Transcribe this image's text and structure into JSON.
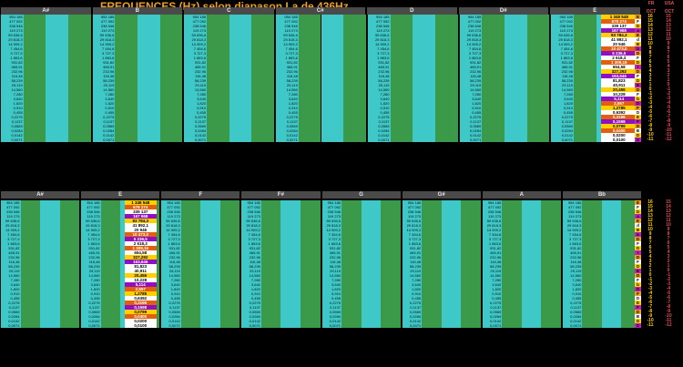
{
  "title": "FREQUENCES  (Hz) selon diapason La de 436Hz",
  "oct_header_fr": [
    "FR",
    "OCT"
  ],
  "oct_header_usa": [
    "USA",
    "OCT"
  ],
  "notes_top": [
    "A#",
    "B",
    "C",
    "C#",
    "D",
    "D#",
    "E"
  ],
  "notes_bottom": [
    "A#",
    "E",
    "F",
    "F#",
    "G",
    "G#",
    "A",
    "Bb"
  ],
  "oct_fr": [
    "16",
    "15",
    "14",
    "13",
    "12",
    "11",
    "10",
    "9",
    "8",
    "7",
    "6",
    "5",
    "4",
    "3",
    "2",
    "1",
    "0",
    "-1",
    "-2",
    "-3",
    "-4",
    "-5",
    "-6",
    "-7",
    "-8",
    "-9",
    "-10",
    "-11"
  ],
  "oct_usa": [
    "15",
    "14",
    "13",
    "12",
    "11",
    "10",
    "9",
    "8",
    "7",
    "6",
    "5",
    "4",
    "3",
    "2",
    "1",
    "0",
    "-1",
    "-2",
    "-3",
    "-4",
    "-5",
    "-6",
    "-7",
    "-8",
    "-9",
    "-10",
    "-11",
    "-12"
  ],
  "tags": [
    "E",
    "F",
    "D",
    "a",
    "E",
    "d",
    "B",
    "b",
    "D",
    "F",
    "D",
    "t",
    "D",
    "F",
    "D",
    "E",
    "D",
    "F",
    "b",
    "D",
    "F",
    "D",
    "E",
    "F",
    "D",
    "B",
    "D",
    "D"
  ],
  "highlight_top": [
    "1 348 548",
    "678 274",
    "339 137",
    "167 968",
    "83 784,3",
    "41 892,1",
    "20 946",
    "10 473,0",
    "5 236,5",
    "2 618,3",
    "1 309,16",
    "654,58",
    "327,292",
    "163,646",
    "81,823",
    "40,911",
    "20,456",
    "10,228",
    "5,114",
    "2,557",
    "1,2785",
    "0,6392",
    "0,3196",
    "0,1598",
    "0,0799",
    "0,0400",
    "0,0200",
    "0,0100"
  ],
  "highlight_bottom": [
    "1 348 548",
    "678 274",
    "339 137",
    "167 968",
    "83 784,3",
    "41 892,1",
    "20 946",
    "10 473,0",
    "5 236,5",
    "2 618,3",
    "1 309,16",
    "654,58",
    "327,292",
    "163,646",
    "81,823",
    "40,911",
    "20,456",
    "10,228",
    "5,114",
    "2,557",
    "1,2785",
    "0,6392",
    "0,3196",
    "0,1598",
    "0,0799",
    "0,0400",
    "0,0200",
    "0,0100"
  ],
  "sample_values": [
    "954 185",
    "477 092",
    "238 546",
    "119 273",
    "59 636,6",
    "29 818,3",
    "14 909,2",
    "7 454,6",
    "3 727,3",
    "1 863,6",
    "931,82",
    "465,91",
    "232,96",
    "116,48",
    "58,239",
    "29,119",
    "14,560",
    "7,280",
    "3,640",
    "1,820",
    "0,910",
    "0,455",
    "0,2275",
    "0,1137",
    "0,0569",
    "0,0284",
    "0,0142",
    "0,0071"
  ],
  "colors": {
    "header_bg": "#4a4a4a",
    "cyan": "#3ec8c8",
    "green": "#3a9a4a",
    "title": "#f0a020",
    "oct": "#ffd000",
    "red_hdr": "#e05050"
  }
}
